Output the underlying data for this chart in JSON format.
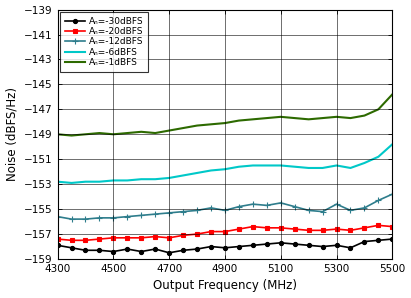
{
  "xlabel": "Output Frequency (MHz)",
  "ylabel": "Noise (dBFS/Hz)",
  "xlim": [
    4300,
    5500
  ],
  "ylim": [
    -159,
    -139
  ],
  "xticks": [
    4300,
    4500,
    4700,
    4900,
    5100,
    5300,
    5500
  ],
  "yticks": [
    -159,
    -157,
    -155,
    -153,
    -151,
    -149,
    -147,
    -145,
    -143,
    -141,
    -139
  ],
  "freq": [
    4300,
    4350,
    4400,
    4450,
    4500,
    4550,
    4600,
    4650,
    4700,
    4750,
    4800,
    4850,
    4900,
    4950,
    5000,
    5050,
    5100,
    5150,
    5200,
    5250,
    5300,
    5350,
    5400,
    5450,
    5500
  ],
  "series": [
    {
      "label": "Aₙ=-30dBFS",
      "color": "#000000",
      "marker": "o",
      "linewidth": 1.2,
      "markersize": 3.0,
      "values": [
        -157.9,
        -158.1,
        -158.3,
        -158.3,
        -158.4,
        -158.2,
        -158.4,
        -158.2,
        -158.5,
        -158.3,
        -158.2,
        -158.0,
        -158.1,
        -158.0,
        -157.9,
        -157.8,
        -157.7,
        -157.8,
        -157.9,
        -158.0,
        -157.9,
        -158.1,
        -157.6,
        -157.5,
        -157.4
      ]
    },
    {
      "label": "Aₙ=-20dBFS",
      "color": "#FF0000",
      "marker": "s",
      "linewidth": 1.2,
      "markersize": 3.0,
      "values": [
        -157.4,
        -157.5,
        -157.5,
        -157.4,
        -157.3,
        -157.3,
        -157.3,
        -157.2,
        -157.3,
        -157.1,
        -157.0,
        -156.8,
        -156.8,
        -156.6,
        -156.4,
        -156.5,
        -156.5,
        -156.6,
        -156.7,
        -156.7,
        -156.6,
        -156.7,
        -156.5,
        -156.3,
        -156.4
      ]
    },
    {
      "label": "Aₙ=-12dBFS",
      "color": "#2E7D8C",
      "marker": "+",
      "linewidth": 1.2,
      "markersize": 4.5,
      "values": [
        -155.6,
        -155.8,
        -155.8,
        -155.7,
        -155.7,
        -155.6,
        -155.5,
        -155.4,
        -155.3,
        -155.2,
        -155.1,
        -154.9,
        -155.1,
        -154.8,
        -154.6,
        -154.7,
        -154.5,
        -154.8,
        -155.1,
        -155.2,
        -154.6,
        -155.1,
        -154.9,
        -154.3,
        -153.8
      ]
    },
    {
      "label": "Aₙ=-6dBFS",
      "color": "#00C8C8",
      "marker": null,
      "linewidth": 1.5,
      "markersize": 0,
      "values": [
        -152.8,
        -152.9,
        -152.8,
        -152.8,
        -152.7,
        -152.7,
        -152.6,
        -152.6,
        -152.5,
        -152.3,
        -152.1,
        -151.9,
        -151.8,
        -151.6,
        -151.5,
        -151.5,
        -151.5,
        -151.6,
        -151.7,
        -151.7,
        -151.5,
        -151.7,
        -151.3,
        -150.8,
        -149.8
      ]
    },
    {
      "label": "Aₙ=-1dBFS",
      "color": "#2D6A00",
      "marker": null,
      "linewidth": 1.5,
      "markersize": 0,
      "values": [
        -149.0,
        -149.1,
        -149.0,
        -148.9,
        -149.0,
        -148.9,
        -148.8,
        -148.9,
        -148.7,
        -148.5,
        -148.3,
        -148.2,
        -148.1,
        -147.9,
        -147.8,
        -147.7,
        -147.6,
        -147.7,
        -147.8,
        -147.7,
        -147.6,
        -147.7,
        -147.5,
        -147.0,
        -145.8
      ]
    }
  ],
  "background_color": "#FFFFFF",
  "legend_fontsize": 6.5,
  "tick_fontsize": 7.5,
  "label_fontsize": 8.5
}
